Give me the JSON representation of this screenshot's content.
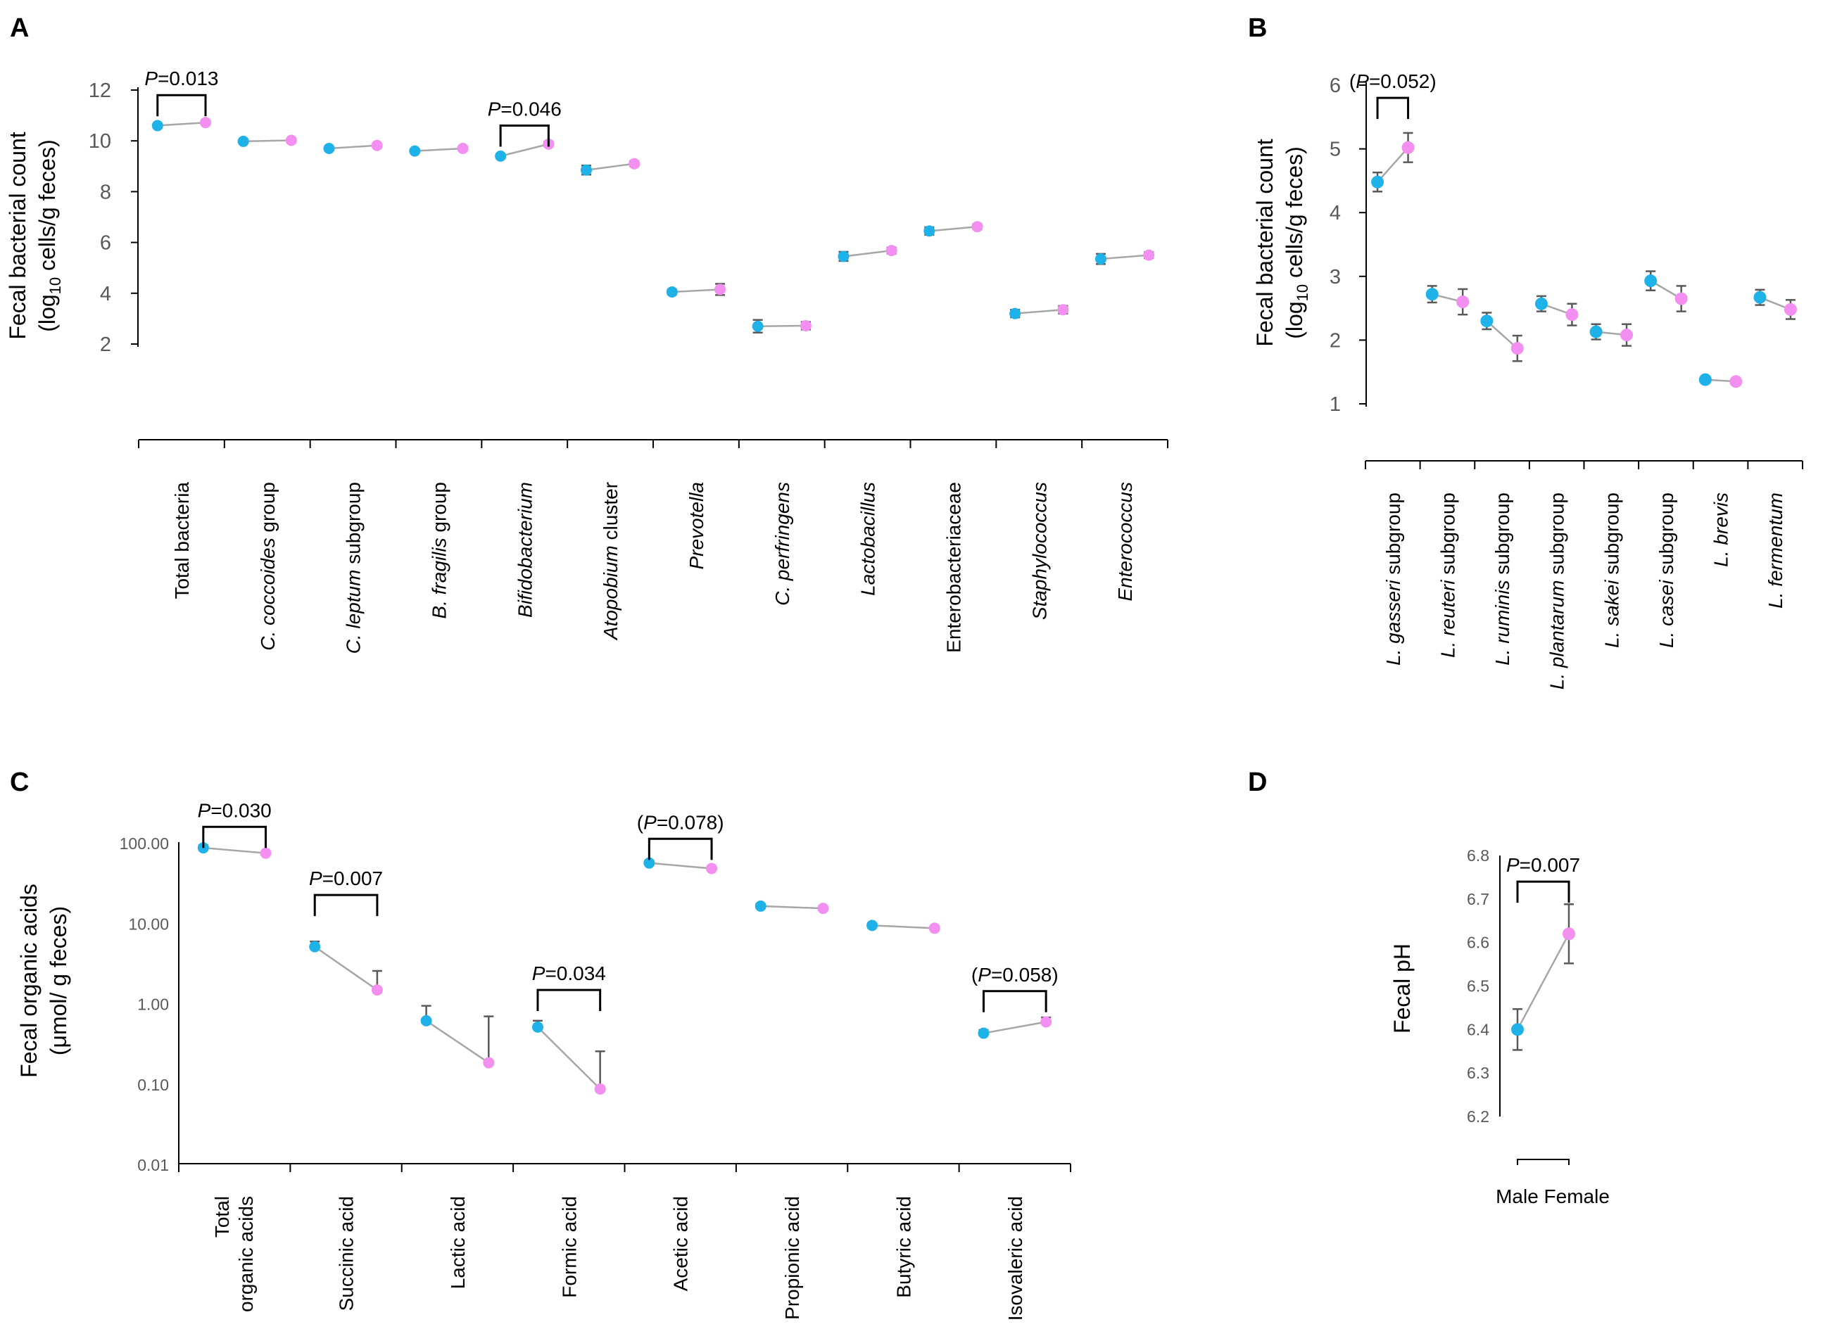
{
  "colors": {
    "male": "#1fb2e8",
    "female": "#f28ff0"
  },
  "chart_data": [
    {
      "panel": "A",
      "type": "scatter",
      "ylabel": "Fecal bacterial count",
      "ylabel_parts": {
        "pre": "(log",
        "sub": "10",
        "post": " cells/g feces)"
      },
      "ylim": [
        2,
        12
      ],
      "yticks": [
        "2",
        "4",
        "6",
        "8",
        "10",
        "12"
      ],
      "tick_values": [
        2,
        4,
        6,
        8,
        10,
        12
      ],
      "categories": [
        {
          "parts": [
            {
              "t": "Total bacteria",
              "i": false
            }
          ]
        },
        {
          "parts": [
            {
              "t": "C. coccoides",
              "i": true
            },
            {
              "t": " group",
              "i": false
            }
          ]
        },
        {
          "parts": [
            {
              "t": "C. leptum",
              "i": true
            },
            {
              "t": " subgroup",
              "i": false
            }
          ]
        },
        {
          "parts": [
            {
              "t": "B. fragilis",
              "i": true
            },
            {
              "t": "  group",
              "i": false
            }
          ]
        },
        {
          "parts": [
            {
              "t": "Bifidobacterium",
              "i": true
            }
          ]
        },
        {
          "parts": [
            {
              "t": "Atopobium",
              "i": true
            },
            {
              "t": " cluster",
              "i": false
            }
          ]
        },
        {
          "parts": [
            {
              "t": "Prevotella",
              "i": true
            }
          ]
        },
        {
          "parts": [
            {
              "t": "C. perfringens",
              "i": true
            }
          ]
        },
        {
          "parts": [
            {
              "t": "Lactobacillus",
              "i": true
            }
          ]
        },
        {
          "parts": [
            {
              "t": "Enterobacteriaceae",
              "i": false
            }
          ]
        },
        {
          "parts": [
            {
              "t": "Staphylococcus",
              "i": true
            }
          ]
        },
        {
          "parts": [
            {
              "t": "Enterococcus",
              "i": true
            }
          ]
        }
      ],
      "series": [
        {
          "name": "Male",
          "values": [
            10.6,
            9.98,
            9.7,
            9.6,
            9.4,
            8.85,
            4.05,
            2.7,
            5.45,
            6.45,
            3.2,
            5.35
          ],
          "err": [
            0.08,
            0.07,
            0.07,
            0.07,
            0.08,
            0.18,
            0.1,
            0.25,
            0.18,
            0.15,
            0.15,
            0.2
          ]
        },
        {
          "name": "Female",
          "values": [
            10.72,
            10.02,
            9.82,
            9.7,
            9.87,
            9.1,
            4.15,
            2.72,
            5.68,
            6.62,
            3.35,
            5.5
          ],
          "err": [
            0.06,
            0.07,
            0.07,
            0.08,
            0.1,
            0.1,
            0.22,
            0.15,
            0.12,
            0.1,
            0.15,
            0.12
          ]
        }
      ],
      "annotations": [
        {
          "label": "P",
          "value": "=0.013",
          "paren": false,
          "index": 0,
          "level": 11.8
        },
        {
          "label": "P",
          "value": "=0.046",
          "paren": false,
          "index": 4,
          "level": 10.6
        }
      ]
    },
    {
      "panel": "B",
      "type": "scatter",
      "ylabel": "Fecal bacterial count",
      "ylabel_parts": {
        "pre": "(log",
        "sub": "10",
        "post": " cells/g feces)"
      },
      "ylim": [
        1,
        6
      ],
      "yticks": [
        "1",
        "2",
        "3",
        "4",
        "5",
        "6"
      ],
      "tick_values": [
        1,
        2,
        3,
        4,
        5,
        6
      ],
      "categories": [
        {
          "parts": [
            {
              "t": "L. gasseri",
              "i": true
            },
            {
              "t": " subgroup",
              "i": false
            }
          ]
        },
        {
          "parts": [
            {
              "t": "L. reuteri",
              "i": true
            },
            {
              "t": " subgroup",
              "i": false
            }
          ]
        },
        {
          "parts": [
            {
              "t": "L. ruminis",
              "i": true
            },
            {
              "t": " subgroup",
              "i": false
            }
          ]
        },
        {
          "parts": [
            {
              "t": "L. plantarum",
              "i": true
            },
            {
              "t": " subgroup",
              "i": false
            }
          ]
        },
        {
          "parts": [
            {
              "t": "L. sakei",
              "i": true
            },
            {
              "t": " subgroup",
              "i": false
            }
          ]
        },
        {
          "parts": [
            {
              "t": "L. casei",
              "i": true
            },
            {
              "t": " subgroup",
              "i": false
            }
          ]
        },
        {
          "parts": [
            {
              "t": "L. brevis",
              "i": true
            }
          ]
        },
        {
          "parts": [
            {
              "t": "L. fermentum",
              "i": true
            }
          ]
        }
      ],
      "series": [
        {
          "name": "Male",
          "values": [
            4.48,
            2.72,
            2.3,
            2.57,
            2.13,
            2.93,
            1.38,
            2.67
          ],
          "err": [
            0.15,
            0.13,
            0.13,
            0.12,
            0.12,
            0.15,
            0.05,
            0.12
          ]
        },
        {
          "name": "Female",
          "values": [
            5.02,
            2.6,
            1.87,
            2.4,
            2.08,
            2.65,
            1.35,
            2.48
          ],
          "err": [
            0.23,
            0.2,
            0.2,
            0.17,
            0.17,
            0.2,
            0.05,
            0.15
          ]
        }
      ],
      "annotations": [
        {
          "label": "P",
          "value": "=0.052",
          "paren": true,
          "index": 0,
          "level": 5.8
        }
      ]
    },
    {
      "panel": "C",
      "type": "scatter",
      "yscale": "log",
      "ylabel": "Fecal organic acids",
      "ylabel_parts": {
        "pre": "(μmol/ g feces)",
        "sub": "",
        "post": ""
      },
      "ylim": [
        0.01,
        100
      ],
      "yticks": [
        "0.01",
        "0.10",
        "1.00",
        "10.00",
        "100.00"
      ],
      "tick_values": [
        0.01,
        0.1,
        1,
        10,
        100
      ],
      "categories": [
        {
          "parts": [
            {
              "t": "Total",
              "i": false
            }
          ],
          "line2": "organic acids"
        },
        {
          "parts": [
            {
              "t": "Succinic acid",
              "i": false
            }
          ]
        },
        {
          "parts": [
            {
              "t": "Lactic acid",
              "i": false
            }
          ]
        },
        {
          "parts": [
            {
              "t": "Formic acid",
              "i": false
            }
          ]
        },
        {
          "parts": [
            {
              "t": "Acetic acid",
              "i": false
            }
          ]
        },
        {
          "parts": [
            {
              "t": "Propionic acid",
              "i": false
            }
          ]
        },
        {
          "parts": [
            {
              "t": "Butyric acid",
              "i": false
            }
          ]
        },
        {
          "parts": [
            {
              "t": "Isovaleric acid",
              "i": false
            }
          ]
        }
      ],
      "series": [
        {
          "name": "Male",
          "values": [
            85,
            5.0,
            0.6,
            0.5,
            55,
            16,
            9.2,
            0.42
          ],
          "upper": [
            92,
            5.8,
            0.92,
            0.6,
            59,
            17,
            9.8,
            0.46
          ]
        },
        {
          "name": "Female",
          "values": [
            73,
            1.45,
            0.18,
            0.085,
            47,
            15,
            8.5,
            0.58
          ],
          "upper": [
            77,
            2.5,
            0.68,
            0.25,
            49,
            16,
            9.0,
            0.66
          ]
        }
      ],
      "annotations": [
        {
          "label": "P",
          "value": "=0.030",
          "paren": false,
          "index": 0,
          "level": 155
        },
        {
          "label": "P",
          "value": "=0.007",
          "paren": false,
          "index": 1,
          "level": 22
        },
        {
          "label": "P",
          "value": "=0.034",
          "paren": false,
          "index": 3,
          "level": 1.45
        },
        {
          "label": "P",
          "value": "=0.078",
          "paren": true,
          "index": 4,
          "level": 110
        },
        {
          "label": "P",
          "value": "=0.058",
          "paren": true,
          "index": 7,
          "level": 1.4
        }
      ]
    },
    {
      "panel": "D",
      "type": "scatter",
      "ylabel": "Fecal pH",
      "ylim": [
        6.2,
        6.8
      ],
      "yticks": [
        "6.2",
        "6.3",
        "6.4",
        "6.5",
        "6.6",
        "6.7",
        "6.8"
      ],
      "tick_values": [
        6.2,
        6.3,
        6.4,
        6.5,
        6.6,
        6.7,
        6.8
      ],
      "xlabel": "Male Female",
      "series": [
        {
          "name": "Male",
          "value": 6.4,
          "err": 0.047
        },
        {
          "name": "Female",
          "value": 6.62,
          "err": 0.068
        }
      ],
      "annotations": [
        {
          "label": "P",
          "value": "=0.007",
          "paren": false,
          "level": 6.74
        }
      ]
    }
  ]
}
